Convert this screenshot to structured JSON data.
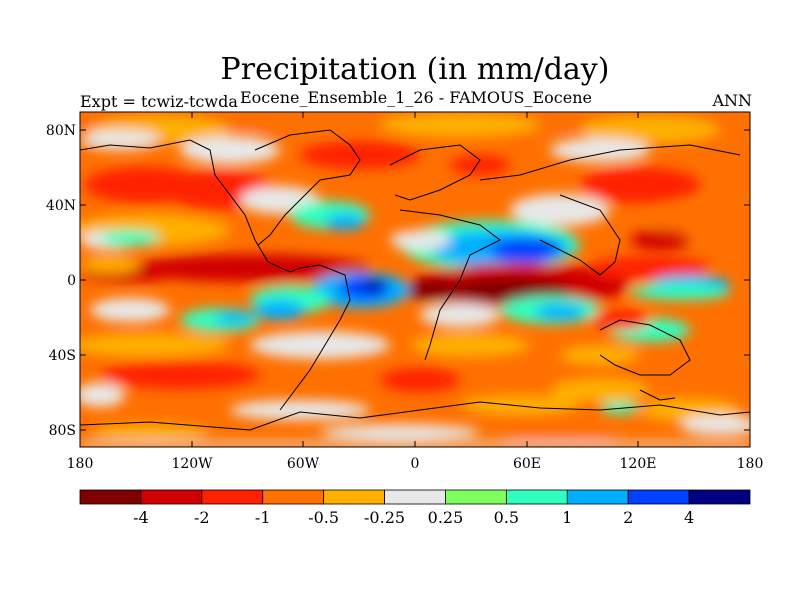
{
  "title": "Precipitation (in mm/day)",
  "subtitle": "Eocene_Ensemble_1_26 - FAMOUS_Eocene",
  "left_label": "Expt = tcwiz-tcwda",
  "right_label": "ANN",
  "lat_ticks": [
    "80N",
    "40N",
    "0",
    "40S",
    "80S"
  ],
  "lon_ticks": [
    "180",
    "120W",
    "60W",
    "0",
    "60E",
    "120E",
    "180"
  ],
  "colorbar": {
    "colors": [
      "#800000",
      "#d00000",
      "#ff2000",
      "#ff7000",
      "#ffb000",
      "#e8e8e8",
      "#80ff60",
      "#30ffc0",
      "#00b0ff",
      "#0040ff",
      "#000080"
    ],
    "labels": [
      "-4",
      "-2",
      "-1",
      "-0.5",
      "-0.25",
      "0.25",
      "0.5",
      "1",
      "2",
      "4"
    ]
  }
}
